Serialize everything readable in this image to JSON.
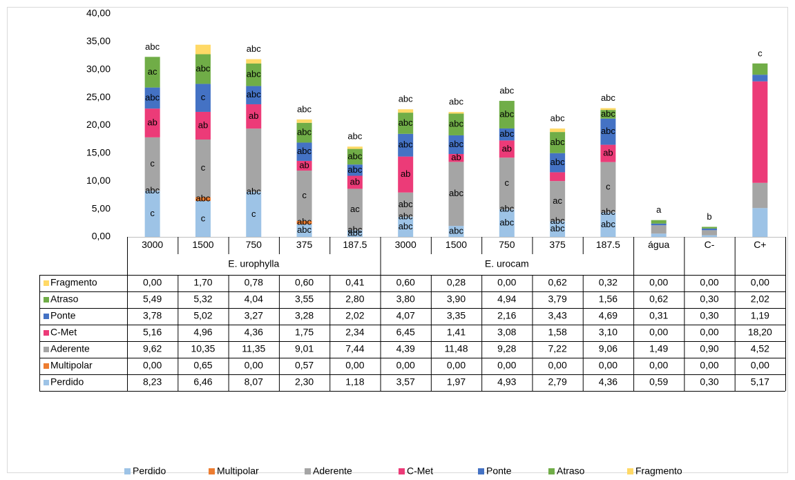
{
  "chart_data": {
    "type": "stacked_bar",
    "categories": [
      "3000",
      "1500",
      "750",
      "375",
      "187.5",
      "3000",
      "1500",
      "750",
      "375",
      "187.5",
      "água",
      "C-",
      "C+"
    ],
    "groups": [
      {
        "label": "E. urophylla",
        "size": 5
      },
      {
        "label": "E. urocam",
        "size": 5
      }
    ],
    "ylim": [
      0,
      40
    ],
    "yticks": [
      {
        "value": 0,
        "label": "0,00"
      },
      {
        "value": 5,
        "label": "5,00"
      },
      {
        "value": 10,
        "label": "10,00"
      },
      {
        "value": 15,
        "label": "15,00"
      },
      {
        "value": 20,
        "label": "20,00"
      },
      {
        "value": 25,
        "label": "25,00"
      },
      {
        "value": 30,
        "label": "30,00"
      },
      {
        "value": 35,
        "label": "35,00"
      },
      {
        "value": 40,
        "label": "40,00"
      }
    ],
    "series": [
      {
        "name": "Perdido",
        "color": "#9dc3e6",
        "values": [
          8.23,
          6.46,
          8.07,
          2.3,
          1.18,
          3.57,
          1.97,
          4.93,
          2.79,
          4.36,
          0.59,
          0.3,
          5.17
        ],
        "value_labels": [
          "8,23",
          "6,46",
          "8,07",
          "2,30",
          "1,18",
          "3,57",
          "1,97",
          "4,93",
          "2,79",
          "4,36",
          "0,59",
          "0,30",
          "5,17"
        ],
        "letters": [
          "c",
          "c",
          "c",
          "abc",
          "abc",
          "abc",
          "abc",
          "abc",
          "abc",
          "abc",
          null,
          null,
          null
        ]
      },
      {
        "name": "Multipolar",
        "color": "#ed7d31",
        "values": [
          0.0,
          0.65,
          0.0,
          0.57,
          0.0,
          0.0,
          0.0,
          0.0,
          0.0,
          0.0,
          0.0,
          0.0,
          0.0
        ],
        "value_labels": [
          "0,00",
          "0,65",
          "0,00",
          "0,57",
          "0,00",
          "0,00",
          "0,00",
          "0,00",
          "0,00",
          "0,00",
          "0,00",
          "0,00",
          "0,00"
        ],
        "letters": [
          "abc",
          "abc",
          "abc",
          "abc",
          "abc",
          "abc",
          null,
          "abc",
          "abc",
          "abc",
          null,
          null,
          null
        ]
      },
      {
        "name": "Aderente",
        "color": "#a5a5a5",
        "values": [
          9.62,
          10.35,
          11.35,
          9.01,
          7.44,
          4.39,
          11.48,
          9.28,
          7.22,
          9.06,
          1.49,
          0.9,
          4.52
        ],
        "value_labels": [
          "9,62",
          "10,35",
          "11,35",
          "9,01",
          "7,44",
          "4,39",
          "11,48",
          "9,28",
          "7,22",
          "9,06",
          "1,49",
          "0,90",
          "4,52"
        ],
        "letters": [
          "c",
          "c",
          null,
          "c",
          "ac",
          "abc",
          "abc",
          "c",
          "ac",
          "c",
          null,
          null,
          null
        ]
      },
      {
        "name": "C-Met",
        "color": "#ec3b78",
        "values": [
          5.16,
          4.96,
          4.36,
          1.75,
          2.34,
          6.45,
          1.41,
          3.08,
          1.58,
          3.1,
          0.0,
          0.0,
          18.2
        ],
        "value_labels": [
          "5,16",
          "4,96",
          "4,36",
          "1,75",
          "2,34",
          "6,45",
          "1,41",
          "3,08",
          "1,58",
          "3,10",
          "0,00",
          "0,00",
          "18,20"
        ],
        "letters": [
          "ab",
          "ab",
          "ab",
          "ab",
          "ab",
          "ab",
          "ab",
          "ab",
          null,
          "ab",
          null,
          null,
          null
        ]
      },
      {
        "name": "Ponte",
        "color": "#4472c4",
        "values": [
          3.78,
          5.02,
          3.27,
          3.28,
          2.02,
          4.07,
          3.35,
          2.16,
          3.43,
          4.69,
          0.31,
          0.3,
          1.19
        ],
        "value_labels": [
          "3,78",
          "5,02",
          "3,27",
          "3,28",
          "2,02",
          "4,07",
          "3,35",
          "2,16",
          "3,43",
          "4,69",
          "0,31",
          "0,30",
          "1,19"
        ],
        "letters": [
          "abc",
          "c",
          "abc",
          "abc",
          "abc",
          "abc",
          "abc",
          "abc",
          "abc",
          "abc",
          null,
          null,
          null
        ]
      },
      {
        "name": "Atraso",
        "color": "#70ad47",
        "values": [
          5.49,
          5.32,
          4.04,
          3.55,
          2.8,
          3.8,
          3.9,
          4.94,
          3.79,
          1.56,
          0.62,
          0.3,
          2.02
        ],
        "value_labels": [
          "5,49",
          "5,32",
          "4,04",
          "3,55",
          "2,80",
          "3,80",
          "3,90",
          "4,94",
          "3,79",
          "1,56",
          "0,62",
          "0,30",
          "2,02"
        ],
        "letters": [
          "ac",
          "abc",
          "abc",
          "abc",
          "abc",
          "abc",
          "abc",
          "abc",
          "abc",
          "abc",
          null,
          null,
          null
        ]
      },
      {
        "name": "Fragmento",
        "color": "#ffd966",
        "values": [
          0.0,
          1.7,
          0.78,
          0.6,
          0.41,
          0.6,
          0.28,
          0.0,
          0.62,
          0.32,
          0.0,
          0.0,
          0.0
        ],
        "value_labels": [
          "0,00",
          "1,70",
          "0,78",
          "0,60",
          "0,41",
          "0,60",
          "0,28",
          "0,00",
          "0,62",
          "0,32",
          "0,00",
          "0,00",
          "0,00"
        ],
        "letters": [
          "abc",
          null,
          "abc",
          "abc",
          "abc",
          "abc",
          "abc",
          "abc",
          "abc",
          "abc",
          "a",
          "b",
          "c"
        ]
      }
    ]
  }
}
